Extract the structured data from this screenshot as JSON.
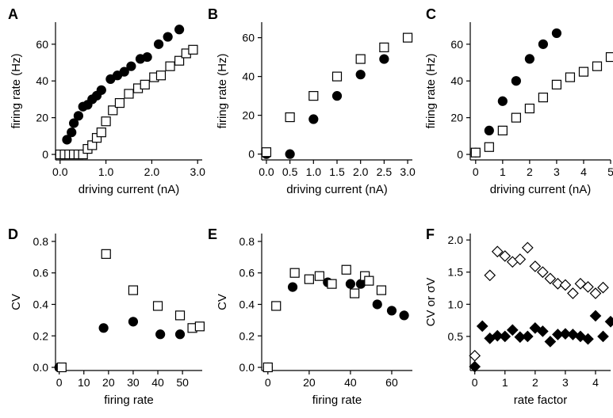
{
  "chart_data": [
    {
      "panel": "A",
      "type": "scatter",
      "xlabel": "driving current (nA)",
      "ylabel": "firing rate (Hz)",
      "xlim": [
        -0.1,
        3.1
      ],
      "ylim": [
        -3,
        72
      ],
      "xticks": [
        0.0,
        1.0,
        2.0,
        3.0
      ],
      "xtick_labels": [
        "0.0",
        "1.0",
        "2.0",
        "3.0"
      ],
      "yticks": [
        0,
        20,
        40,
        60
      ],
      "ytick_labels": [
        "0",
        "20",
        "40",
        "60"
      ],
      "series": [
        {
          "marker": "filled-circle",
          "points": [
            [
              0.0,
              0
            ],
            [
              0.05,
              0
            ],
            [
              0.1,
              0
            ],
            [
              0.15,
              8
            ],
            [
              0.25,
              12
            ],
            [
              0.3,
              17
            ],
            [
              0.4,
              21
            ],
            [
              0.5,
              26
            ],
            [
              0.6,
              27
            ],
            [
              0.7,
              30
            ],
            [
              0.8,
              32
            ],
            [
              0.9,
              35
            ],
            [
              1.1,
              41
            ],
            [
              1.25,
              43
            ],
            [
              1.4,
              45
            ],
            [
              1.55,
              48
            ],
            [
              1.75,
              52
            ],
            [
              1.9,
              53
            ],
            [
              2.15,
              60
            ],
            [
              2.35,
              64
            ],
            [
              2.6,
              68
            ]
          ]
        },
        {
          "marker": "open-square",
          "points": [
            [
              0.0,
              0
            ],
            [
              0.1,
              0
            ],
            [
              0.2,
              0
            ],
            [
              0.3,
              0
            ],
            [
              0.4,
              0
            ],
            [
              0.5,
              0
            ],
            [
              0.6,
              3
            ],
            [
              0.7,
              5
            ],
            [
              0.8,
              9
            ],
            [
              0.9,
              12
            ],
            [
              1.0,
              18
            ],
            [
              1.15,
              24
            ],
            [
              1.3,
              28
            ],
            [
              1.5,
              33
            ],
            [
              1.7,
              36
            ],
            [
              1.85,
              38
            ],
            [
              2.05,
              42
            ],
            [
              2.2,
              43
            ],
            [
              2.4,
              48
            ],
            [
              2.6,
              51
            ],
            [
              2.75,
              55
            ],
            [
              2.9,
              57
            ]
          ]
        }
      ]
    },
    {
      "panel": "B",
      "type": "scatter",
      "xlabel": "driving current (nA)",
      "ylabel": "firing rate (Hz)",
      "xlim": [
        -0.1,
        3.1
      ],
      "ylim": [
        -3,
        68
      ],
      "xticks": [
        0.0,
        0.5,
        1.0,
        1.5,
        2.0,
        2.5,
        3.0
      ],
      "xtick_labels": [
        "0.0",
        "0.5",
        "1.0",
        "1.5",
        "2.0",
        "2.5",
        "3.0"
      ],
      "yticks": [
        0,
        20,
        40,
        60
      ],
      "ytick_labels": [
        "0",
        "20",
        "40",
        "60"
      ],
      "series": [
        {
          "marker": "filled-circle",
          "points": [
            [
              0.0,
              0
            ],
            [
              0.5,
              0
            ],
            [
              1.0,
              18
            ],
            [
              1.5,
              30
            ],
            [
              2.0,
              41
            ],
            [
              2.5,
              49
            ]
          ]
        },
        {
          "marker": "open-square",
          "points": [
            [
              0.0,
              1
            ],
            [
              0.5,
              19
            ],
            [
              1.0,
              30
            ],
            [
              1.5,
              40
            ],
            [
              2.0,
              49
            ],
            [
              2.5,
              55
            ],
            [
              3.0,
              60
            ]
          ]
        }
      ]
    },
    {
      "panel": "C",
      "type": "scatter",
      "xlabel": "driving current (nA)",
      "ylabel": "firing rate (Hz)",
      "xlim": [
        -0.2,
        5.0
      ],
      "ylim": [
        -3,
        72
      ],
      "xticks": [
        0,
        1,
        2,
        3,
        4,
        5
      ],
      "xtick_labels": [
        "0",
        "1",
        "2",
        "3",
        "4",
        "5"
      ],
      "yticks": [
        0,
        20,
        40,
        60
      ],
      "ytick_labels": [
        "0",
        "20",
        "40",
        "60"
      ],
      "series": [
        {
          "marker": "filled-circle",
          "points": [
            [
              0.0,
              1
            ],
            [
              0.5,
              13
            ],
            [
              1.0,
              29
            ],
            [
              1.5,
              40
            ],
            [
              2.0,
              52
            ],
            [
              2.5,
              60
            ],
            [
              3.0,
              66
            ]
          ]
        },
        {
          "marker": "open-square",
          "points": [
            [
              0.0,
              1
            ],
            [
              0.5,
              4
            ],
            [
              1.0,
              13
            ],
            [
              1.5,
              20
            ],
            [
              2.0,
              25
            ],
            [
              2.5,
              31
            ],
            [
              3.0,
              38
            ],
            [
              3.5,
              42
            ],
            [
              4.0,
              45
            ],
            [
              4.5,
              48
            ],
            [
              5.0,
              53
            ]
          ]
        }
      ]
    },
    {
      "panel": "D",
      "type": "scatter",
      "xlabel": "firing rate",
      "ylabel": "CV",
      "xlim": [
        -1.5,
        58
      ],
      "ylim": [
        -0.02,
        0.85
      ],
      "xticks": [
        0,
        20,
        40
      ],
      "xtick_labels": [
        "0",
        "20",
        "40"
      ],
      "xticks_minor": [
        10,
        30,
        50
      ],
      "xtick_labels_minor": [
        "10",
        "30",
        "50"
      ],
      "yticks": [
        0.0,
        0.2,
        0.4,
        0.6,
        0.8
      ],
      "ytick_labels": [
        "0.0",
        "0.2",
        "0.4",
        "0.6",
        "0.8"
      ],
      "series": [
        {
          "marker": "filled-circle",
          "points": [
            [
              0,
              0
            ],
            [
              18,
              0.25
            ],
            [
              30,
              0.29
            ],
            [
              41,
              0.21
            ],
            [
              49,
              0.21
            ]
          ]
        },
        {
          "marker": "open-square",
          "points": [
            [
              1,
              0
            ],
            [
              19,
              0.72
            ],
            [
              30,
              0.49
            ],
            [
              40,
              0.39
            ],
            [
              49,
              0.33
            ],
            [
              54,
              0.25
            ],
            [
              57,
              0.26
            ]
          ]
        }
      ]
    },
    {
      "panel": "E",
      "type": "scatter",
      "xlabel": "firing rate",
      "ylabel": "CV",
      "xlim": [
        -3,
        70
      ],
      "ylim": [
        -0.02,
        0.85
      ],
      "xticks": [
        0,
        20,
        40,
        60
      ],
      "xtick_labels": [
        "0",
        "20",
        "40",
        "60"
      ],
      "yticks": [
        0.0,
        0.2,
        0.4,
        0.6,
        0.8
      ],
      "ytick_labels": [
        "0.0",
        "0.2",
        "0.4",
        "0.6",
        "0.8"
      ],
      "series": [
        {
          "marker": "filled-circle",
          "points": [
            [
              0,
              0
            ],
            [
              12,
              0.51
            ],
            [
              29,
              0.54
            ],
            [
              40,
              0.53
            ],
            [
              45,
              0.53
            ],
            [
              53,
              0.4
            ],
            [
              60,
              0.36
            ],
            [
              66,
              0.33
            ]
          ]
        },
        {
          "marker": "open-square",
          "points": [
            [
              0,
              0
            ],
            [
              4,
              0.39
            ],
            [
              13,
              0.6
            ],
            [
              20,
              0.56
            ],
            [
              25,
              0.58
            ],
            [
              31,
              0.53
            ],
            [
              38,
              0.62
            ],
            [
              42,
              0.47
            ],
            [
              47,
              0.58
            ],
            [
              49,
              0.55
            ],
            [
              55,
              0.49
            ]
          ]
        }
      ]
    },
    {
      "panel": "F",
      "type": "scatter",
      "xlabel": "rate factor",
      "ylabel": "CV or σV",
      "xlim": [
        -0.15,
        4.5
      ],
      "ylim": [
        -0.03,
        2.1
      ],
      "xticks": [
        0,
        1,
        2,
        3,
        4
      ],
      "xtick_labels": [
        "0",
        "1",
        "2",
        "3",
        "4"
      ],
      "yticks": [
        0.5,
        1.0,
        1.5,
        2.0
      ],
      "ytick_labels": [
        "0.5",
        "1.0",
        "1.5",
        "2.0"
      ],
      "series": [
        {
          "marker": "open-diamond",
          "points": [
            [
              0.0,
              0.2
            ],
            [
              0.5,
              1.45
            ],
            [
              0.75,
              1.82
            ],
            [
              1.0,
              1.75
            ],
            [
              1.25,
              1.66
            ],
            [
              1.5,
              1.7
            ],
            [
              1.75,
              1.88
            ],
            [
              2.0,
              1.59
            ],
            [
              2.25,
              1.5
            ],
            [
              2.5,
              1.4
            ],
            [
              2.75,
              1.32
            ],
            [
              3.0,
              1.3
            ],
            [
              3.25,
              1.17
            ],
            [
              3.5,
              1.32
            ],
            [
              3.75,
              1.27
            ],
            [
              4.0,
              1.17
            ],
            [
              4.25,
              1.26
            ]
          ]
        },
        {
          "marker": "filled-diamond",
          "points": [
            [
              0.0,
              0.03
            ],
            [
              0.25,
              0.66
            ],
            [
              0.5,
              0.47
            ],
            [
              0.75,
              0.51
            ],
            [
              1.0,
              0.5
            ],
            [
              1.25,
              0.6
            ],
            [
              1.5,
              0.49
            ],
            [
              1.75,
              0.5
            ],
            [
              2.0,
              0.63
            ],
            [
              2.25,
              0.58
            ],
            [
              2.5,
              0.42
            ],
            [
              2.75,
              0.53
            ],
            [
              3.0,
              0.54
            ],
            [
              3.25,
              0.53
            ],
            [
              3.5,
              0.5
            ],
            [
              3.75,
              0.46
            ],
            [
              4.0,
              0.82
            ],
            [
              4.25,
              0.5
            ],
            [
              4.5,
              0.73
            ]
          ]
        }
      ]
    }
  ]
}
